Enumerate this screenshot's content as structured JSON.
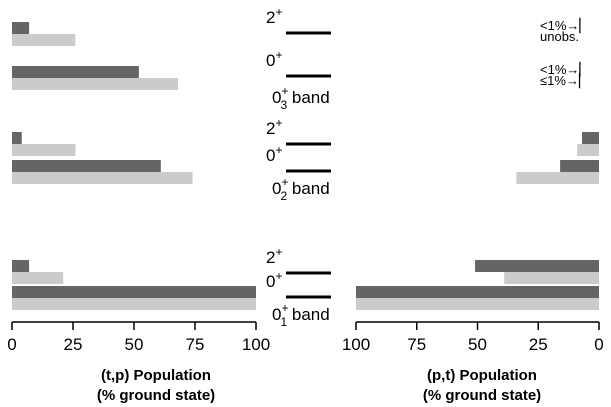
{
  "chart_data": {
    "type": "bar",
    "orientation": "horizontal",
    "grid": false,
    "colors": {
      "dark": "#656565",
      "light": "#cbcbcb",
      "axis": "#000000"
    },
    "groups": [
      {
        "band": "0",
        "band_sup": "+",
        "band_sub": "3",
        "band_suffix": " band",
        "levels": [
          {
            "spin": "2",
            "spin_sup": "+",
            "tp": {
              "dark": 7,
              "light": 26
            },
            "pt": {
              "dark": null,
              "light": null
            },
            "pt_note": [
              {
                "text": "<1%",
                "arrow": "→",
                "mark": "▏"
              },
              {
                "text": "unobs.",
                "arrow": "",
                "mark": ""
              }
            ]
          },
          {
            "spin": "0",
            "spin_sup": "+",
            "tp": {
              "dark": 52,
              "light": 68
            },
            "pt": {
              "dark": null,
              "light": null
            },
            "pt_note": [
              {
                "text": "<1%",
                "arrow": "→",
                "mark": "▏"
              },
              {
                "text": "≤1%",
                "arrow": "→",
                "mark": "▏"
              }
            ]
          }
        ]
      },
      {
        "band": "0",
        "band_sup": "+",
        "band_sub": "2",
        "band_suffix": " band",
        "levels": [
          {
            "spin": "2",
            "spin_sup": "+",
            "tp": {
              "dark": 4,
              "light": 26
            },
            "pt": {
              "dark": 7,
              "light": 9
            },
            "pt_note": []
          },
          {
            "spin": "0",
            "spin_sup": "+",
            "tp": {
              "dark": 61,
              "light": 74
            },
            "pt": {
              "dark": 16,
              "light": 34
            },
            "pt_note": []
          }
        ]
      },
      {
        "band": "0",
        "band_sup": "+",
        "band_sub": "1",
        "band_suffix": " band",
        "levels": [
          {
            "spin": "2",
            "spin_sup": "+",
            "tp": {
              "dark": 7,
              "light": 21
            },
            "pt": {
              "dark": 51,
              "light": 39
            },
            "pt_note": []
          },
          {
            "spin": "0",
            "spin_sup": "+",
            "tp": {
              "dark": 100,
              "light": 100
            },
            "pt": {
              "dark": 100,
              "light": 100
            },
            "pt_note": []
          }
        ]
      }
    ],
    "left_panel": {
      "xlim": [
        0,
        100
      ],
      "reversed": false,
      "ticks": [
        "0",
        "25",
        "50",
        "75",
        "100"
      ],
      "tick_values": [
        0,
        25,
        50,
        75,
        100
      ],
      "xlabel_line1": "(t,p) Population",
      "xlabel_line2": "(% ground state)"
    },
    "right_panel": {
      "xlim": [
        100,
        0
      ],
      "reversed": true,
      "ticks": [
        "100",
        "75",
        "50",
        "25",
        "0"
      ],
      "tick_values": [
        100,
        75,
        50,
        25,
        0
      ],
      "xlabel_line1": "(p,t) Population",
      "xlabel_line2": "(% ground state)"
    }
  }
}
